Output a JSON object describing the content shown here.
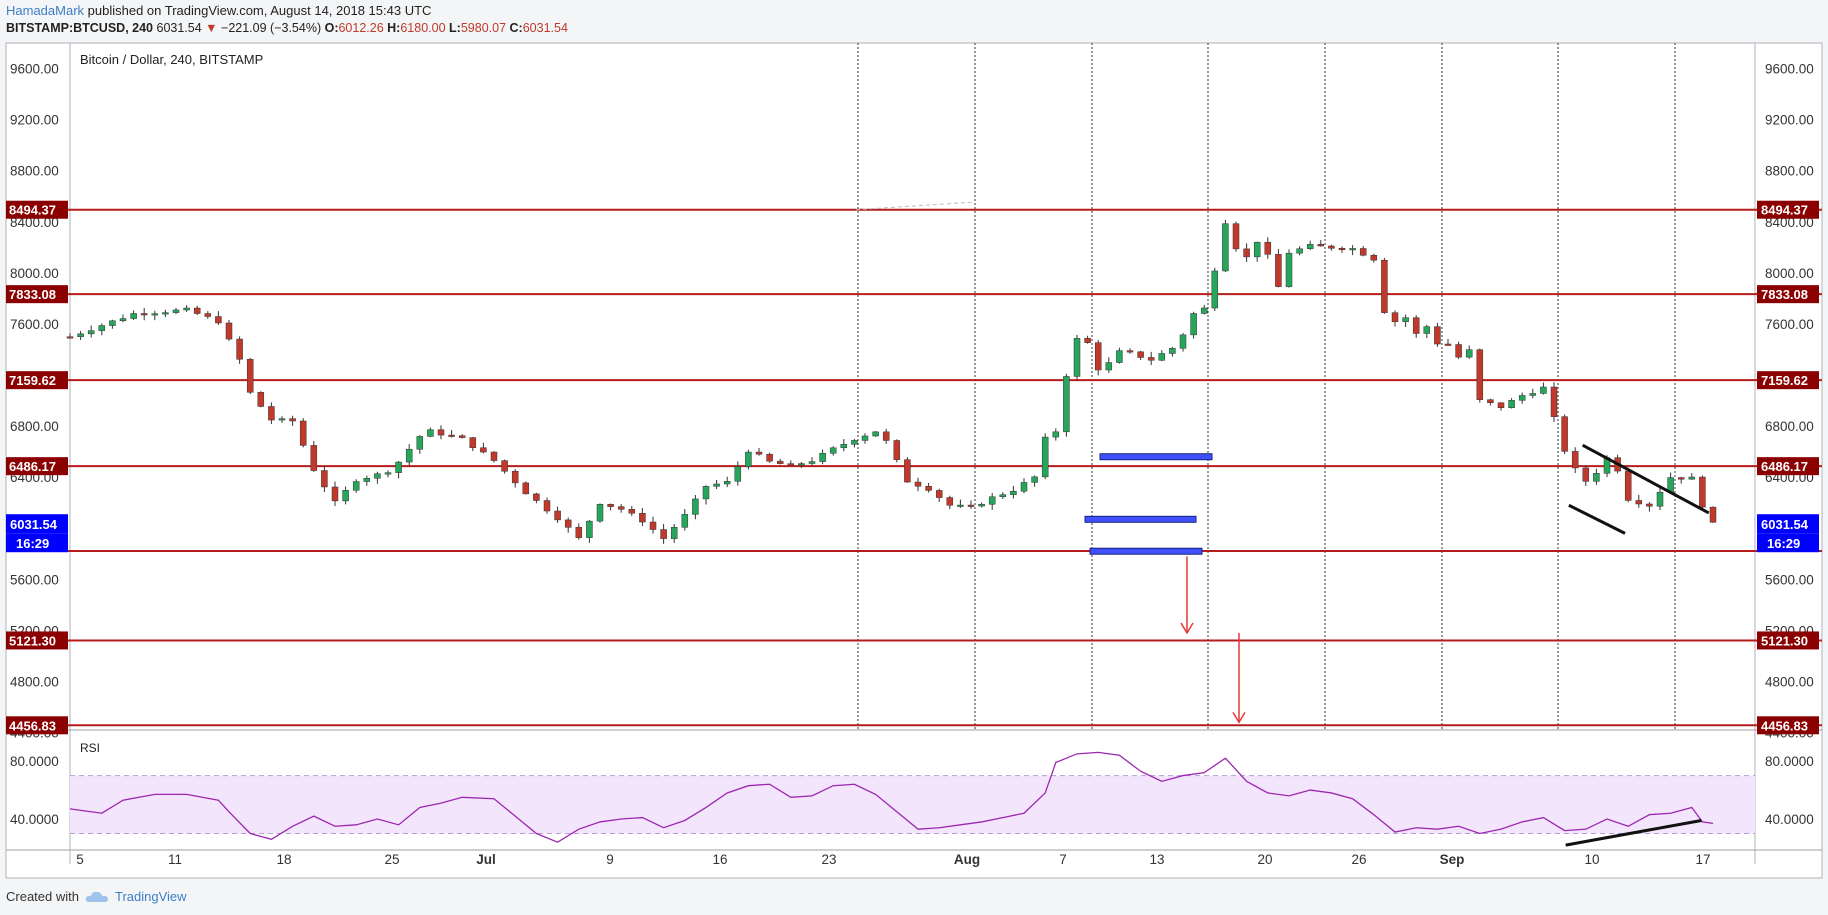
{
  "header": {
    "author": "HamadaMark",
    "published": "published on TradingView.com, August 14, 2018 15:43 UTC",
    "symbol": "BITSTAMP:BTCUSD, 240",
    "last": "6031.54",
    "change_arrow": "▼",
    "change": "−221.09 (−3.54%)",
    "o_label": "O:",
    "o": "6012.26",
    "h_label": "H:",
    "h": "6180.00",
    "l_label": "L:",
    "l": "5980.07",
    "c_label": "C:",
    "c": "6031.54"
  },
  "footer": {
    "created_with": "Created with",
    "brand": "TradingView",
    "logo_icon": "tradingview-cloud-icon"
  },
  "colors": {
    "up": "#26a65b",
    "down": "#c0392b",
    "level": "#b71c1c",
    "level_label_bg": "#8b0000",
    "price_label_bg": "#0000ff",
    "rsi": "#9c27b0",
    "rsi_band": "#f3e5fb",
    "arrow": "#e53935",
    "box": "#3f51ff"
  },
  "chart_data": [
    {
      "type": "candlestick",
      "title": "Bitcoin / Dollar, 240, BITSTAMP",
      "ylim": [
        4420,
        9800
      ],
      "y_ticks": [
        "9600.00",
        "9200.00",
        "8800.00",
        "8400.00",
        "8000.00",
        "7600.00",
        "6800.00",
        "6400.00",
        "5600.00",
        "5200.00",
        "4800.00",
        "4400.00"
      ],
      "x_ticks": [
        "5",
        "11",
        "18",
        "25",
        "Jul",
        "9",
        "16",
        "23",
        "Aug",
        "7",
        "13",
        "20",
        "26",
        "Sep",
        "10",
        "17"
      ],
      "horizontal_levels": [
        "8494.37",
        "7833.08",
        "7159.62",
        "6486.17",
        "5821.87",
        "5121.30",
        "4456.83"
      ],
      "current_price": "6031.54",
      "countdown": "16:29",
      "close_path": [
        [
          0,
          7500
        ],
        [
          6,
          7680
        ],
        [
          11,
          7710
        ],
        [
          14,
          7620
        ],
        [
          16,
          7320
        ],
        [
          17,
          7060
        ],
        [
          19,
          6850
        ],
        [
          21,
          6840
        ],
        [
          23,
          6460
        ],
        [
          25,
          6200
        ],
        [
          27,
          6380
        ],
        [
          29,
          6420
        ],
        [
          30,
          6450
        ],
        [
          31,
          6520
        ],
        [
          33,
          6720
        ],
        [
          34,
          6760
        ],
        [
          37,
          6700
        ],
        [
          40,
          6530
        ],
        [
          43,
          6280
        ],
        [
          46,
          6080
        ],
        [
          48,
          5920
        ],
        [
          50,
          6200
        ],
        [
          52,
          6150
        ],
        [
          54,
          6060
        ],
        [
          56,
          5920
        ],
        [
          58,
          6100
        ],
        [
          60,
          6330
        ],
        [
          62,
          6360
        ],
        [
          64,
          6610
        ],
        [
          66,
          6520
        ],
        [
          68,
          6490
        ],
        [
          70,
          6530
        ],
        [
          72,
          6620
        ],
        [
          74,
          6700
        ],
        [
          76,
          6760
        ],
        [
          77,
          6680
        ],
        [
          79,
          6370
        ],
        [
          81,
          6310
        ],
        [
          83,
          6180
        ],
        [
          85,
          6160
        ],
        [
          87,
          6240
        ],
        [
          89,
          6300
        ],
        [
          91,
          6400
        ],
        [
          92,
          6700
        ],
        [
          93,
          6760
        ],
        [
          94,
          7200
        ],
        [
          95,
          7480
        ],
        [
          96,
          7450
        ],
        [
          97,
          7250
        ],
        [
          98,
          7290
        ],
        [
          99,
          7380
        ],
        [
          100,
          7370
        ],
        [
          102,
          7320
        ],
        [
          104,
          7410
        ],
        [
          105,
          7520
        ],
        [
          106,
          7680
        ],
        [
          107,
          7720
        ],
        [
          108,
          8030
        ],
        [
          109,
          8400
        ],
        [
          110,
          8200
        ],
        [
          111,
          8120
        ],
        [
          112,
          8250
        ],
        [
          113,
          8130
        ],
        [
          114,
          7890
        ],
        [
          115,
          8160
        ],
        [
          117,
          8210
        ],
        [
          119,
          8200
        ],
        [
          121,
          8190
        ],
        [
          123,
          8110
        ],
        [
          124,
          7700
        ],
        [
          125,
          7620
        ],
        [
          126,
          7650
        ],
        [
          127,
          7520
        ],
        [
          128,
          7580
        ],
        [
          129,
          7450
        ],
        [
          130,
          7440
        ],
        [
          131,
          7340
        ],
        [
          132,
          7390
        ],
        [
          133,
          7000
        ],
        [
          135,
          6950
        ],
        [
          137,
          7040
        ],
        [
          139,
          7100
        ],
        [
          140,
          6860
        ],
        [
          141,
          6610
        ],
        [
          142,
          6460
        ],
        [
          143,
          6370
        ],
        [
          144,
          6440
        ],
        [
          145,
          6550
        ],
        [
          146,
          6460
        ],
        [
          147,
          6230
        ],
        [
          149,
          6180
        ],
        [
          151,
          6400
        ],
        [
          153,
          6390
        ],
        [
          154,
          6180
        ],
        [
          155,
          6032
        ]
      ],
      "drawings": {
        "descending_channel_upper": [
          [
            142.7,
            6650
          ],
          [
            154.6,
            6120
          ]
        ],
        "descending_channel_lower": [
          [
            141.4,
            6180
          ],
          [
            146.7,
            5960
          ]
        ],
        "range_top_box": "6560",
        "range_mid_box": "6070",
        "range_low_box": "5820",
        "target_arrow_1": [
          5780,
          5180
        ],
        "target_arrow_2": [
          5180,
          4480
        ]
      }
    },
    {
      "type": "line",
      "title": "RSI",
      "ylim": [
        20,
        98
      ],
      "y_ticks": [
        "80.0000",
        "40.0000"
      ],
      "bands": [
        70,
        30
      ],
      "values": [
        [
          0,
          47
        ],
        [
          3,
          44
        ],
        [
          5,
          53
        ],
        [
          8,
          57
        ],
        [
          11,
          57
        ],
        [
          14,
          53
        ],
        [
          15,
          45
        ],
        [
          17,
          30
        ],
        [
          19,
          26
        ],
        [
          21,
          35
        ],
        [
          23,
          42
        ],
        [
          25,
          35
        ],
        [
          27,
          36
        ],
        [
          29,
          40
        ],
        [
          31,
          36
        ],
        [
          33,
          48
        ],
        [
          35,
          51
        ],
        [
          37,
          55
        ],
        [
          40,
          54
        ],
        [
          42,
          42
        ],
        [
          44,
          30
        ],
        [
          46,
          24
        ],
        [
          48,
          33
        ],
        [
          50,
          38
        ],
        [
          52,
          40
        ],
        [
          54,
          41
        ],
        [
          56,
          34
        ],
        [
          58,
          39
        ],
        [
          60,
          48
        ],
        [
          62,
          58
        ],
        [
          64,
          63
        ],
        [
          66,
          64
        ],
        [
          68,
          55
        ],
        [
          70,
          56
        ],
        [
          72,
          63
        ],
        [
          74,
          64
        ],
        [
          76,
          57
        ],
        [
          78,
          45
        ],
        [
          80,
          33
        ],
        [
          82,
          34
        ],
        [
          84,
          36
        ],
        [
          86,
          38
        ],
        [
          88,
          41
        ],
        [
          90,
          44
        ],
        [
          92,
          58
        ],
        [
          93,
          79
        ],
        [
          95,
          85
        ],
        [
          97,
          86
        ],
        [
          99,
          84
        ],
        [
          101,
          73
        ],
        [
          103,
          66
        ],
        [
          105,
          70
        ],
        [
          107,
          72
        ],
        [
          109,
          82
        ],
        [
          111,
          66
        ],
        [
          113,
          58
        ],
        [
          115,
          56
        ],
        [
          117,
          60
        ],
        [
          119,
          58
        ],
        [
          121,
          54
        ],
        [
          123,
          43
        ],
        [
          125,
          31
        ],
        [
          127,
          34
        ],
        [
          129,
          33
        ],
        [
          131,
          35
        ],
        [
          133,
          30
        ],
        [
          135,
          33
        ],
        [
          137,
          38
        ],
        [
          139,
          41
        ],
        [
          141,
          32
        ],
        [
          143,
          33
        ],
        [
          145,
          40
        ],
        [
          147,
          35
        ],
        [
          149,
          43
        ],
        [
          151,
          44
        ],
        [
          153,
          48
        ],
        [
          154,
          38
        ],
        [
          155,
          37
        ]
      ],
      "divergence_line": [
        [
          141.1,
          22
        ],
        [
          153.9,
          39
        ]
      ]
    }
  ]
}
